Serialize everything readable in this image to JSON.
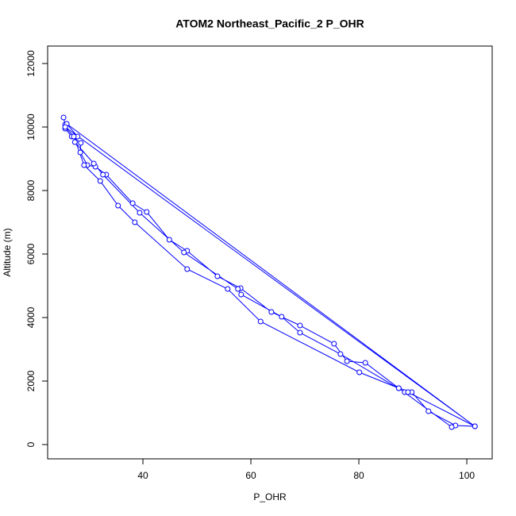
{
  "chart_data": {
    "type": "scatter",
    "title": "ATOM2 Northeast_Pacific_2 P_OHR",
    "x_label": "P_OHR",
    "y_label": "Altitude (m)",
    "color": "#0000ff",
    "x": [
      25.3,
      25.6,
      25.6,
      26.8,
      28.5,
      28.4,
      29.7,
      31.2,
      33.2,
      38.1,
      40.7,
      44.9,
      48.2,
      53.8,
      58.1,
      63.8,
      69.1,
      75.4,
      77.8,
      81.2,
      87.4,
      89.8,
      92.9,
      97.9,
      101.5,
      25.9,
      27.9,
      27.4,
      30.9,
      32.6,
      39.4,
      47.6,
      57.6,
      58.2,
      65.7,
      69.1,
      76.6,
      88.5,
      89.1,
      101.5,
      25.6,
      27.2,
      29.1,
      32.1,
      35.4,
      38.5,
      48.2,
      55.7,
      61.8,
      80.1,
      87.4,
      97.2
    ],
    "values": [
      10300,
      10075,
      9950,
      9700,
      9500,
      9200,
      8800,
      8750,
      8500,
      7600,
      7325,
      6450,
      6100,
      5300,
      4925,
      4175,
      3750,
      3175,
      2625,
      2575,
      1775,
      1650,
      1050,
      600,
      575,
      10100,
      9700,
      9525,
      8850,
      8500,
      7300,
      6050,
      4900,
      4725,
      4025,
      3525,
      2850,
      1650,
      1650,
      575,
      10000,
      9700,
      8800,
      8300,
      7525,
      7000,
      5525,
      4900,
      3875,
      2275,
      1775,
      550
    ],
    "xlim": [
      22.35,
      104.7
    ],
    "ylim": [
      -450,
      12550
    ],
    "xticks": [
      40,
      60,
      80,
      100
    ],
    "yticks": [
      0,
      2000,
      4000,
      6000,
      8000,
      10000,
      12000
    ]
  }
}
